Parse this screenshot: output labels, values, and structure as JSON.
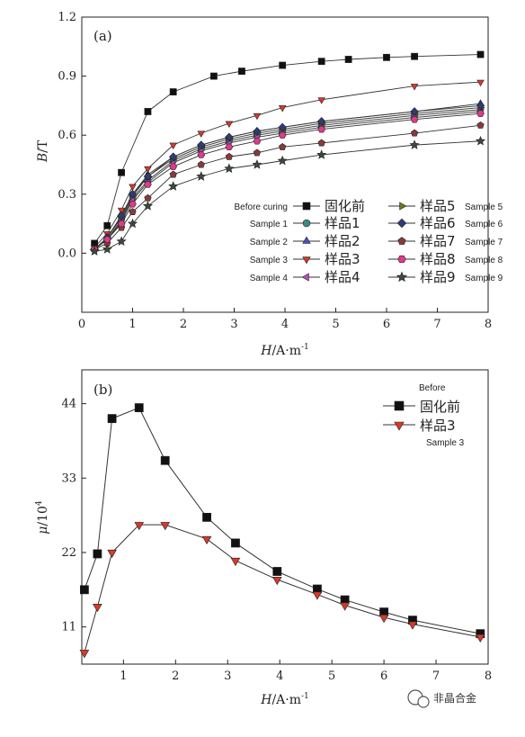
{
  "chart_data": [
    {
      "type": "line",
      "panel_label": "(a)",
      "ylabel_var": "B",
      "ylabel_unit": "/T",
      "xlabel_var": "H",
      "xlabel_unit": "/A·m",
      "xlabel_exp": "-1",
      "xlim": [
        0,
        8
      ],
      "ylim": [
        -0.3,
        1.2
      ],
      "xticks": [
        "0",
        "1",
        "2",
        "3",
        "4",
        "5",
        "6",
        "7",
        "8"
      ],
      "yticks": [
        "0.0",
        "0.3",
        "0.6",
        "0.9",
        "1.2"
      ],
      "legend_placement": "lower-center",
      "series": [
        {
          "name": "固化前",
          "name_en": "Before curing",
          "marker": "square",
          "color": "#111111",
          "x": [
            0.25,
            0.5,
            0.78,
            1.3,
            1.8,
            2.6,
            3.15,
            3.95,
            4.72,
            5.25,
            6.0,
            6.55,
            7.85
          ],
          "y": [
            0.05,
            0.14,
            0.41,
            0.72,
            0.82,
            0.9,
            0.925,
            0.955,
            0.975,
            0.985,
            0.995,
            1.0,
            1.01
          ]
        },
        {
          "name": "样品1",
          "name_en": "Sample 1",
          "marker": "circle",
          "color": "#3a8a86",
          "x": [
            0.25,
            0.5,
            0.78,
            1.0,
            1.3,
            1.8,
            2.35,
            2.9,
            3.45,
            3.95,
            4.72,
            6.55,
            7.85
          ],
          "y": [
            0.02,
            0.07,
            0.17,
            0.28,
            0.37,
            0.47,
            0.53,
            0.57,
            0.6,
            0.62,
            0.65,
            0.7,
            0.73
          ]
        },
        {
          "name": "样品2",
          "name_en": "Sample 2",
          "marker": "triangle-up",
          "color": "#4a4fbf",
          "x": [
            0.25,
            0.5,
            0.78,
            1.0,
            1.3,
            1.8,
            2.35,
            2.9,
            3.45,
            3.95,
            4.72,
            6.55,
            7.85
          ],
          "y": [
            0.02,
            0.08,
            0.19,
            0.3,
            0.4,
            0.49,
            0.55,
            0.59,
            0.62,
            0.64,
            0.67,
            0.72,
            0.76
          ]
        },
        {
          "name": "样品3",
          "name_en": "Sample 3",
          "marker": "triangle-down",
          "color": "#d63a2c",
          "x": [
            0.25,
            0.5,
            0.78,
            1.0,
            1.3,
            1.8,
            2.35,
            2.9,
            3.45,
            3.95,
            4.72,
            6.55,
            7.85
          ],
          "y": [
            0.03,
            0.1,
            0.22,
            0.34,
            0.43,
            0.55,
            0.61,
            0.66,
            0.7,
            0.74,
            0.78,
            0.85,
            0.87
          ]
        },
        {
          "name": "样品4",
          "name_en": "Sample 4",
          "marker": "triangle-left",
          "color": "#b94bc4",
          "x": [
            0.25,
            0.5,
            0.78,
            1.0,
            1.3,
            1.8,
            2.35,
            2.9,
            3.45,
            3.95,
            4.72,
            6.55,
            7.85
          ],
          "y": [
            0.02,
            0.07,
            0.16,
            0.27,
            0.36,
            0.46,
            0.52,
            0.56,
            0.59,
            0.61,
            0.64,
            0.69,
            0.72
          ]
        },
        {
          "name": "样品5",
          "name_en": "Sample 5",
          "marker": "triangle-right",
          "color": "#6b7a1e",
          "x": [
            0.25,
            0.5,
            0.78,
            1.0,
            1.3,
            1.8,
            2.35,
            2.9,
            3.45,
            3.95,
            4.72,
            6.55,
            7.85
          ],
          "y": [
            0.02,
            0.08,
            0.18,
            0.29,
            0.39,
            0.48,
            0.54,
            0.58,
            0.61,
            0.63,
            0.66,
            0.71,
            0.74
          ]
        },
        {
          "name": "样品6",
          "name_en": "Sample 6",
          "marker": "diamond",
          "color": "#2f3a78",
          "x": [
            0.25,
            0.5,
            0.78,
            1.0,
            1.3,
            1.8,
            2.35,
            2.9,
            3.45,
            3.95,
            4.72,
            6.55,
            7.85
          ],
          "y": [
            0.02,
            0.08,
            0.19,
            0.3,
            0.39,
            0.49,
            0.55,
            0.59,
            0.62,
            0.64,
            0.67,
            0.72,
            0.75
          ]
        },
        {
          "name": "样品7",
          "name_en": "Sample 7",
          "marker": "pentagon",
          "color": "#8a3a3a",
          "x": [
            0.25,
            0.5,
            0.78,
            1.0,
            1.3,
            1.8,
            2.35,
            2.9,
            3.45,
            3.95,
            4.72,
            6.55,
            7.85
          ],
          "y": [
            0.02,
            0.05,
            0.13,
            0.21,
            0.28,
            0.4,
            0.45,
            0.49,
            0.51,
            0.54,
            0.56,
            0.61,
            0.65
          ]
        },
        {
          "name": "样品8",
          "name_en": "Sample 8",
          "marker": "hexagon",
          "color": "#e03a8a",
          "x": [
            0.25,
            0.5,
            0.78,
            1.0,
            1.3,
            1.8,
            2.35,
            2.9,
            3.45,
            3.95,
            4.72,
            6.55,
            7.85
          ],
          "y": [
            0.02,
            0.07,
            0.15,
            0.25,
            0.35,
            0.44,
            0.5,
            0.54,
            0.57,
            0.6,
            0.63,
            0.68,
            0.71
          ]
        },
        {
          "name": "样品9",
          "name_en": "Sample 9",
          "marker": "star",
          "color": "#3c4a3c",
          "x": [
            0.25,
            0.5,
            0.78,
            1.0,
            1.3,
            1.8,
            2.35,
            2.9,
            3.45,
            3.95,
            4.72,
            6.55,
            7.85
          ],
          "y": [
            0.01,
            0.02,
            0.06,
            0.15,
            0.24,
            0.34,
            0.39,
            0.43,
            0.45,
            0.47,
            0.5,
            0.55,
            0.57
          ]
        }
      ]
    },
    {
      "type": "line",
      "panel_label": "(b)",
      "ylabel_var": "μ",
      "ylabel_unit": "/10",
      "ylabel_exp": "4",
      "xlabel_var": "H",
      "xlabel_unit": "/A·m",
      "xlabel_exp": "-1",
      "xlim": [
        0.2,
        8
      ],
      "ylim": [
        5.5,
        49
      ],
      "xticks": [
        "1",
        "2",
        "3",
        "4",
        "5",
        "6",
        "7",
        "8"
      ],
      "yticks": [
        "11",
        "22",
        "33",
        "44"
      ],
      "legend_placement": "top-right",
      "legend_header_en": "Before",
      "series": [
        {
          "name": "固化前",
          "marker": "square",
          "color": "#111111",
          "x": [
            0.25,
            0.5,
            0.78,
            1.3,
            1.8,
            2.6,
            3.15,
            3.95,
            4.72,
            5.25,
            6.0,
            6.55,
            7.85
          ],
          "y": [
            16.5,
            21.8,
            41.8,
            43.4,
            35.6,
            27.2,
            23.4,
            19.2,
            16.6,
            15.0,
            13.2,
            12.0,
            10.0
          ]
        },
        {
          "name": "样品3",
          "name_en": "Sample 3",
          "marker": "triangle-down",
          "color": "#d63a2c",
          "x": [
            0.25,
            0.5,
            0.78,
            1.3,
            1.8,
            2.6,
            3.15,
            3.95,
            4.72,
            5.25,
            6.0,
            6.55,
            7.85
          ],
          "y": [
            7.2,
            14.0,
            22.0,
            26.1,
            26.1,
            24.0,
            20.8,
            18.0,
            15.8,
            14.2,
            12.4,
            11.4,
            9.5
          ]
        }
      ]
    }
  ],
  "watermark": "非晶合金"
}
